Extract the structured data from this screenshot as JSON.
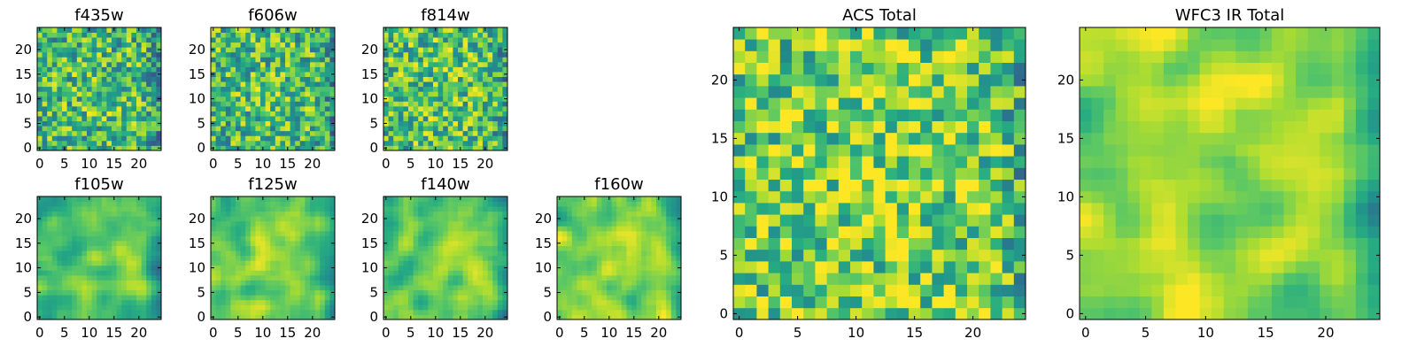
{
  "colormap": "viridis",
  "chart_data": [
    {
      "type": "heatmap",
      "title": "f435w",
      "grid": [
        25,
        25
      ],
      "x_ticks": [
        "0",
        "5",
        "10",
        "15",
        "20"
      ],
      "y_ticks": [
        "0",
        "5",
        "10",
        "15",
        "20"
      ],
      "xlim": [
        -0.5,
        24.5
      ],
      "ylim": [
        -0.5,
        24.5
      ],
      "texture": "noisy",
      "mean_level": 0.65
    },
    {
      "type": "heatmap",
      "title": "f606w",
      "grid": [
        25,
        25
      ],
      "x_ticks": [
        "0",
        "5",
        "10",
        "15",
        "20"
      ],
      "y_ticks": [
        "0",
        "5",
        "10",
        "15",
        "20"
      ],
      "xlim": [
        -0.5,
        24.5
      ],
      "ylim": [
        -0.5,
        24.5
      ],
      "texture": "noisy",
      "mean_level": 0.65
    },
    {
      "type": "heatmap",
      "title": "f814w",
      "grid": [
        25,
        25
      ],
      "x_ticks": [
        "0",
        "5",
        "10",
        "15",
        "20"
      ],
      "y_ticks": [
        "0",
        "5",
        "10",
        "15",
        "20"
      ],
      "xlim": [
        -0.5,
        24.5
      ],
      "ylim": [
        -0.5,
        24.5
      ],
      "texture": "noisy",
      "mean_level": 0.68
    },
    {
      "type": "heatmap",
      "title": "f105w",
      "grid": [
        25,
        25
      ],
      "x_ticks": [
        "0",
        "5",
        "10",
        "15",
        "20"
      ],
      "y_ticks": [
        "0",
        "5",
        "10",
        "15",
        "20"
      ],
      "xlim": [
        -0.5,
        24.5
      ],
      "ylim": [
        -0.5,
        24.5
      ],
      "texture": "smooth",
      "mean_level": 0.68
    },
    {
      "type": "heatmap",
      "title": "f125w",
      "grid": [
        25,
        25
      ],
      "x_ticks": [
        "0",
        "5",
        "10",
        "15",
        "20"
      ],
      "y_ticks": [
        "0",
        "5",
        "10",
        "15",
        "20"
      ],
      "xlim": [
        -0.5,
        24.5
      ],
      "ylim": [
        -0.5,
        24.5
      ],
      "texture": "smooth",
      "mean_level": 0.72
    },
    {
      "type": "heatmap",
      "title": "f140w",
      "grid": [
        25,
        25
      ],
      "x_ticks": [
        "0",
        "5",
        "10",
        "15",
        "20"
      ],
      "y_ticks": [
        "0",
        "5",
        "10",
        "15",
        "20"
      ],
      "xlim": [
        -0.5,
        24.5
      ],
      "ylim": [
        -0.5,
        24.5
      ],
      "texture": "smooth",
      "mean_level": 0.72
    },
    {
      "type": "heatmap",
      "title": "f160w",
      "grid": [
        25,
        25
      ],
      "x_ticks": [
        "0",
        "5",
        "10",
        "15",
        "20"
      ],
      "y_ticks": [
        "0",
        "5",
        "10",
        "15",
        "20"
      ],
      "xlim": [
        -0.5,
        24.5
      ],
      "ylim": [
        -0.5,
        24.5
      ],
      "texture": "smooth",
      "mean_level": 0.75
    },
    {
      "type": "heatmap",
      "title": "ACS Total",
      "grid": [
        25,
        25
      ],
      "x_ticks": [
        "0",
        "5",
        "10",
        "15",
        "20"
      ],
      "y_ticks": [
        "0",
        "5",
        "10",
        "15",
        "20"
      ],
      "xlim": [
        -0.5,
        24.5
      ],
      "ylim": [
        -0.5,
        24.5
      ],
      "texture": "noisy",
      "mean_level": 0.75
    },
    {
      "type": "heatmap",
      "title": "WFC3 IR Total",
      "grid": [
        25,
        25
      ],
      "x_ticks": [
        "0",
        "5",
        "10",
        "15",
        "20"
      ],
      "y_ticks": [
        "0",
        "5",
        "10",
        "15",
        "20"
      ],
      "xlim": [
        -0.5,
        24.5
      ],
      "ylim": [
        -0.5,
        24.5
      ],
      "texture": "smooth",
      "mean_level": 0.78
    }
  ]
}
